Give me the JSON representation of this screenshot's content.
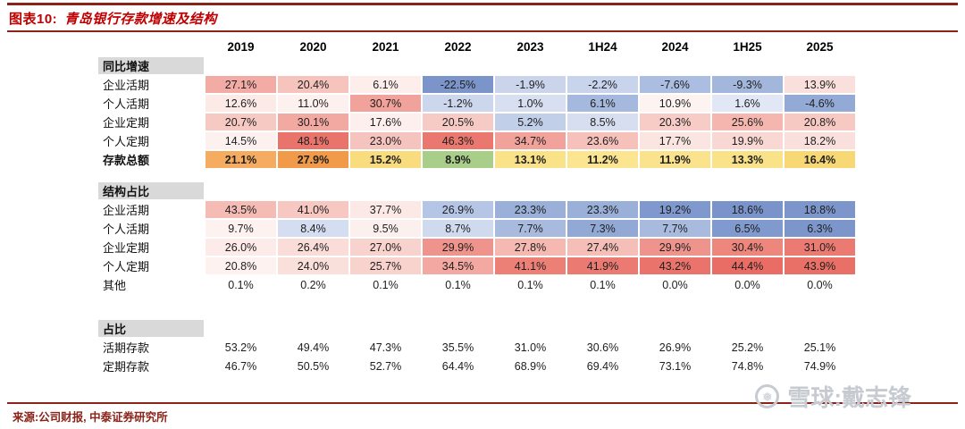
{
  "header": {
    "title_prefix": "图表10:",
    "title_text": "青岛银行存款增速及结构"
  },
  "footer": {
    "source": "来源:公司财报, 中泰证券研究所"
  },
  "watermark": {
    "logo_icon": "❅",
    "text": "雪球:戴志锋"
  },
  "colors": {
    "accent_red": "#C00000",
    "rule_red": "#8B2318",
    "section_label_bg": "#D9D9D9",
    "watermark_gray": "#C6CAD1"
  },
  "chart_data": {
    "type": "table",
    "title": "青岛银行存款增速及结构",
    "columns": [
      "2019",
      "2020",
      "2021",
      "2022",
      "2023",
      "1H24",
      "2024",
      "1H25",
      "2025"
    ],
    "sections": [
      {
        "header": "同比增速",
        "gap_before": 0,
        "rows": [
          {
            "label": "企业活期",
            "bold": false,
            "values": [
              "27.1%",
              "20.4%",
              "6.1%",
              "-22.5%",
              "-1.9%",
              "-2.2%",
              "-7.6%",
              "-9.3%",
              "13.9%"
            ],
            "bg": [
              "#F2ACA5",
              "#F6C3BD",
              "#FDEEEC",
              "#7B95CB",
              "#CAD5EC",
              "#C8D4EB",
              "#ABBDE0",
              "#A3B7DD",
              "#FAE0DC"
            ]
          },
          {
            "label": "个人活期",
            "bold": false,
            "values": [
              "12.6%",
              "11.0%",
              "30.7%",
              "-1.2%",
              "1.0%",
              "6.1%",
              "10.9%",
              "1.6%",
              "-4.6%"
            ],
            "bg": [
              "#FCEAE7",
              "#FDF1EF",
              "#F1A29B",
              "#CCD7ED",
              "#D8DFF1",
              "#A5B8DE",
              "#FDF3F1",
              "#E2E7F5",
              "#93AAD6"
            ]
          },
          {
            "label": "企业定期",
            "bold": false,
            "values": [
              "20.7%",
              "30.1%",
              "17.6%",
              "20.5%",
              "5.2%",
              "8.5%",
              "20.3%",
              "25.6%",
              "20.8%"
            ],
            "bg": [
              "#F7C9C3",
              "#F2A9A2",
              "#FDEFED",
              "#F7CBC5",
              "#C2CFE9",
              "#D6DEF0",
              "#F7CCC6",
              "#F4B6AF",
              "#F7C9C3"
            ]
          },
          {
            "label": "个人定期",
            "bold": false,
            "values": [
              "14.5%",
              "48.1%",
              "23.0%",
              "46.3%",
              "34.7%",
              "23.6%",
              "17.7%",
              "19.9%",
              "18.2%"
            ],
            "bg": [
              "#FDF1EF",
              "#E9746B",
              "#F6C4BE",
              "#EA786F",
              "#F1A29B",
              "#F6C1BB",
              "#FBE5E1",
              "#F9D8D3",
              "#FAE0DC"
            ]
          },
          {
            "label": "存款总额",
            "bold": true,
            "values": [
              "21.1%",
              "27.9%",
              "15.2%",
              "8.9%",
              "13.1%",
              "11.2%",
              "11.9%",
              "13.3%",
              "16.4%"
            ],
            "bg": [
              "#F5AC60",
              "#F09A4A",
              "#F9DC7E",
              "#A8CE89",
              "#FAE289",
              "#FBE591",
              "#FBE38D",
              "#FAE289",
              "#F8D775"
            ]
          }
        ]
      },
      {
        "header": "结构占比",
        "gap_before": 1,
        "rows": [
          {
            "label": "企业活期",
            "bold": false,
            "values": [
              "43.5%",
              "41.0%",
              "37.7%",
              "26.9%",
              "23.3%",
              "23.3%",
              "19.2%",
              "18.6%",
              "18.8%"
            ],
            "bg": [
              "#F5BCB5",
              "#F7C8C2",
              "#FCE9E6",
              "#B4C5E6",
              "#9AB0D9",
              "#9AB0D9",
              "#7F99CE",
              "#7A94CB",
              "#7C96CC"
            ]
          },
          {
            "label": "个人活期",
            "bold": false,
            "values": [
              "9.7%",
              "8.4%",
              "9.5%",
              "8.7%",
              "7.7%",
              "7.3%",
              "7.7%",
              "6.5%",
              "6.3%"
            ],
            "bg": [
              "#FDF2F0",
              "#D5DDF0",
              "#FCF0EE",
              "#D0DAEE",
              "#A8BBDF",
              "#92A9D5",
              "#A8BBDF",
              "#8099CE",
              "#7C96CC"
            ]
          },
          {
            "label": "企业定期",
            "bold": false,
            "values": [
              "26.0%",
              "26.4%",
              "27.0%",
              "29.9%",
              "27.8%",
              "27.4%",
              "29.9%",
              "30.4%",
              "31.0%"
            ],
            "bg": [
              "#FCEBE8",
              "#FADDD8",
              "#F8D2CC",
              "#EF948C",
              "#F5B9B2",
              "#F5BFB8",
              "#EF948C",
              "#ED867D",
              "#EB7B72"
            ]
          },
          {
            "label": "个人定期",
            "bold": false,
            "values": [
              "20.8%",
              "24.0%",
              "25.7%",
              "34.5%",
              "41.1%",
              "41.9%",
              "43.2%",
              "44.4%",
              "43.9%"
            ],
            "bg": [
              "#FDF2F0",
              "#FAE0DB",
              "#F8D2CC",
              "#F3A8A1",
              "#EC8077",
              "#EB7B72",
              "#EA746B",
              "#E96D64",
              "#E97066"
            ]
          },
          {
            "label": "其他",
            "bold": false,
            "values": [
              "0.1%",
              "0.2%",
              "0.1%",
              "0.1%",
              "0.1%",
              "0.1%",
              "0.0%",
              "0.0%",
              "0.0%"
            ],
            "bg": [
              null,
              null,
              null,
              null,
              null,
              null,
              null,
              null,
              null
            ]
          }
        ]
      },
      {
        "header": "占比",
        "gap_before": 2,
        "rows": [
          {
            "label": "活期存款",
            "bold": false,
            "values": [
              "53.2%",
              "49.4%",
              "47.3%",
              "35.5%",
              "31.0%",
              "30.6%",
              "26.9%",
              "25.2%",
              "25.1%"
            ],
            "bg": [
              null,
              null,
              null,
              null,
              null,
              null,
              null,
              null,
              null
            ]
          },
          {
            "label": "定期存款",
            "bold": false,
            "values": [
              "46.7%",
              "50.5%",
              "52.7%",
              "64.4%",
              "68.9%",
              "69.4%",
              "73.1%",
              "74.8%",
              "74.9%"
            ],
            "bg": [
              null,
              null,
              null,
              null,
              null,
              null,
              null,
              null,
              null
            ]
          }
        ]
      }
    ]
  }
}
